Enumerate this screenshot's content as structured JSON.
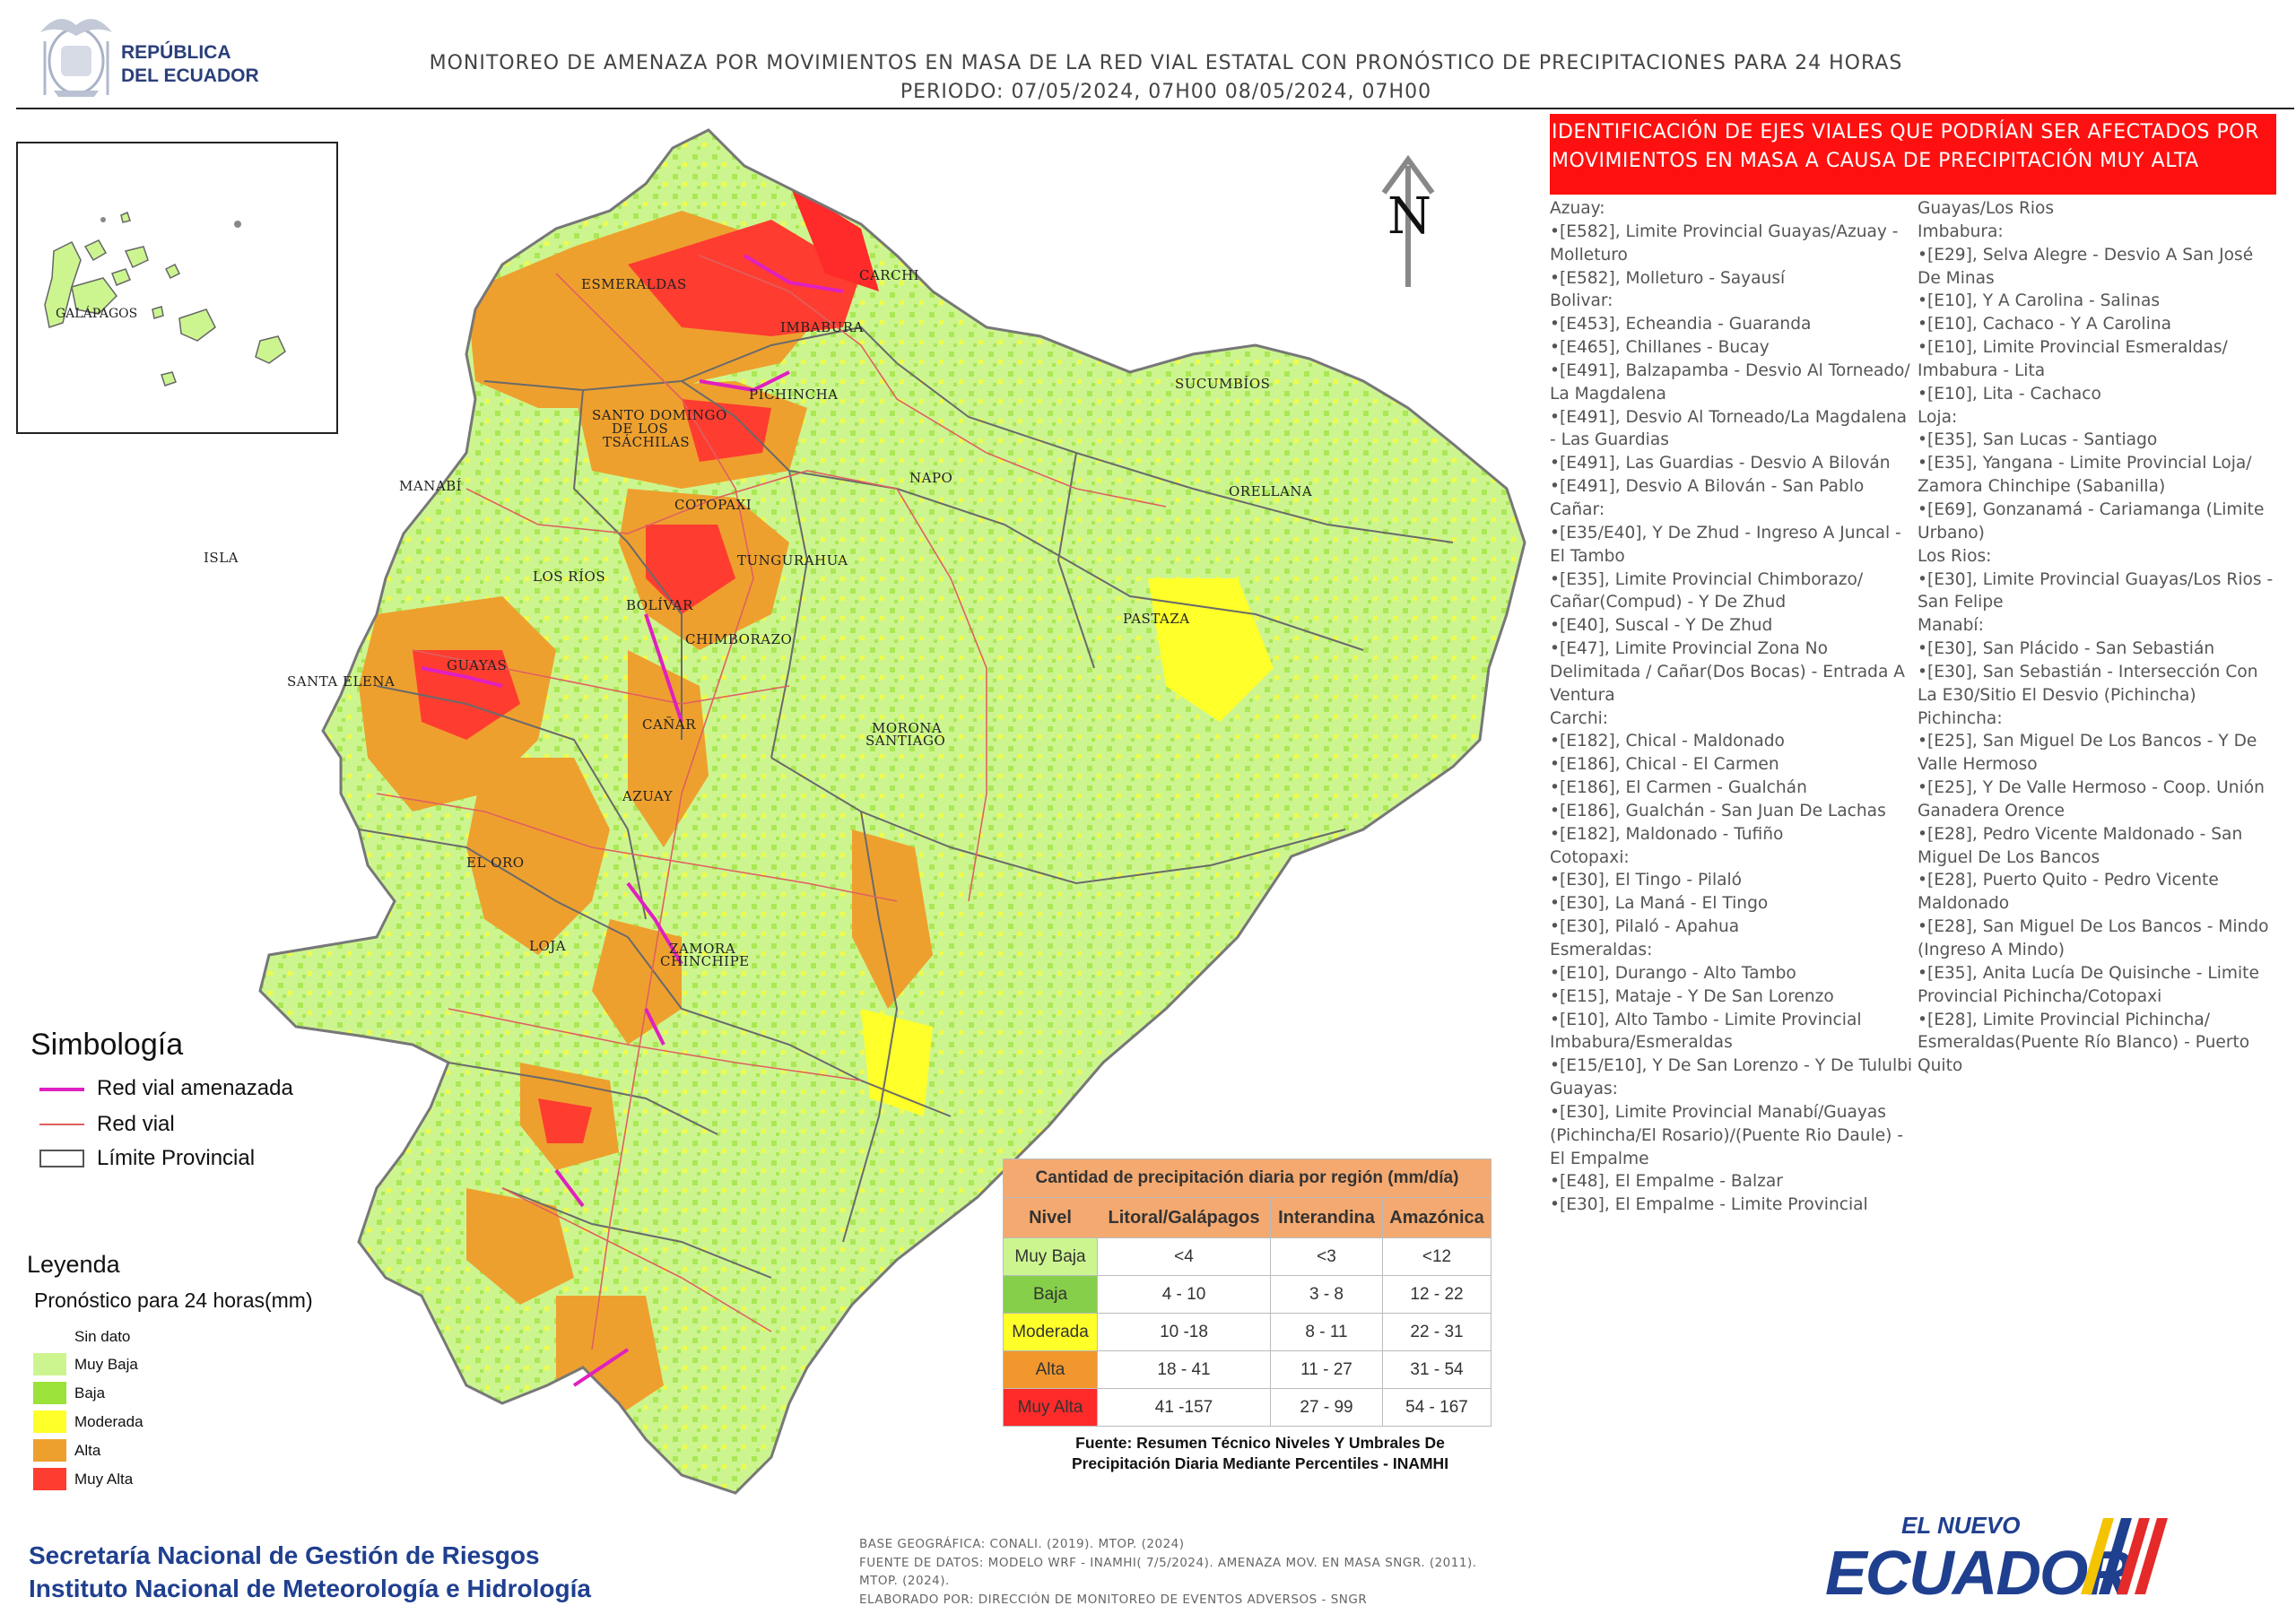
{
  "header": {
    "country_line1": "REPÚBLICA",
    "country_line2": "DEL ECUADOR",
    "title_line1": "MONITOREO DE AMENAZA POR MOVIMIENTOS EN MASA DE LA RED VIAL  ESTATAL  CON PRONÓSTICO  DE  PRECIPITACIONES PARA 24 HORAS",
    "title_line2": "PERIODO: 07/05/2024, 07H00 08/05/2024, 07H00"
  },
  "map": {
    "north_label": "N",
    "inset_label": "GALÁPAGOS",
    "province_labels": [
      "ESMERALDAS",
      "CARCHI",
      "IMBABURA",
      "SUCUMBÍOS",
      "PICHINCHA",
      "SANTO DOMINGO",
      "DE LOS",
      "TSÁCHILAS",
      "MANABÍ",
      "NAPO",
      "ORELLANA",
      "COTOPAXI",
      "ISLA",
      "TUNGURAHUA",
      "LOS RÍOS",
      "BOLÍVAR",
      "PASTAZA",
      "CHIMBORAZO",
      "GUAYAS",
      "SANTA ELENA",
      "CAÑAR",
      "MORONA",
      "SANTIAGO",
      "AZUAY",
      "EL ORO",
      "LOJA",
      "ZAMORA",
      "CHINCHIPE"
    ]
  },
  "panel": {
    "header": "IDENTIFICACIÓN DE EJES VIALES QUE PODRÍAN SER AFECTADOS POR MOVIMIENTOS EN MASA A CAUSA DE PRECIPITACIÓN MUY ALTA",
    "left_lines": [
      "Azuay:",
      "•[E582], Limite Provincial Guayas/Azuay -",
      "Molleturo",
      "•[E582], Molleturo - Sayausí",
      "Bolivar:",
      "•[E453], Echeandia - Guaranda",
      "•[E465], Chillanes - Bucay",
      "•[E491], Balzapamba - Desvio Al Torneado/",
      "La Magdalena",
      "•[E491], Desvio Al Torneado/La Magdalena",
      "- Las Guardias",
      "•[E491], Las Guardias - Desvio A Bilován",
      "•[E491], Desvio A Bilován - San Pablo",
      "Cañar:",
      "•[E35/E40], Y De Zhud - Ingreso A Juncal -",
      "El Tambo",
      "•[E35], Limite Provincial Chimborazo/",
      "Cañar(Compud) - Y De Zhud",
      "•[E40], Suscal - Y De Zhud",
      "•[E47], Limite Provincial Zona No",
      "Delimitada / Cañar(Dos Bocas) - Entrada  A",
      "Ventura",
      "Carchi:",
      "•[E182], Chical - Maldonado",
      "•[E186], Chical - El Carmen",
      "•[E186], El Carmen - Gualchán",
      "•[E186], Gualchán - San Juan De Lachas",
      "•[E182], Maldonado - Tufiño",
      "Cotopaxi:",
      "•[E30], El Tingo - Pilaló",
      "•[E30], La Maná - El Tingo",
      "•[E30], Pilaló - Apahua",
      "Esmeraldas:",
      "•[E10], Durango - Alto Tambo",
      "•[E15], Mataje - Y De San Lorenzo",
      "•[E10], Alto Tambo - Limite Provincial",
      "Imbabura/Esmeraldas",
      "•[E15/E10], Y De San Lorenzo - Y De Tululbi",
      "Guayas:",
      "•[E30], Limite Provincial Manabí/Guayas",
      "(Pichincha/El Rosario)/(Puente Rio Daule) -",
      "El Empalme",
      "•[E48], El Empalme - Balzar",
      "•[E30], El Empalme - Limite Provincial"
    ],
    "right_lines": [
      "Guayas/Los Rios",
      "Imbabura:",
      "•[E29], Selva  Alegre - Desvio  A San José",
      "De Minas",
      "•[E10], Y A Carolina - Salinas",
      "•[E10], Cachaco - Y A Carolina",
      "•[E10], Limite Provincial Esmeraldas/",
      "Imbabura - Lita",
      "•[E10], Lita - Cachaco",
      "Loja:",
      "•[E35], San Lucas - Santiago",
      "•[E35], Yangana - Limite Provincial Loja/",
      "Zamora Chinchipe (Sabanilla)",
      "•[E69], Gonzanamá - Cariamanga (Limite",
      "Urbano)",
      "Los Rios:",
      "•[E30], Limite Provincial Guayas/Los Rios -",
      "San Felipe",
      "Manabí:",
      "•[E30], San Plácido - San Sebastián",
      "•[E30], San Sebastián - Intersección Con",
      "La E30/Sitio El Desvio (Pichincha)",
      "Pichincha:",
      "•[E25], San Miguel De Los Bancos - Y De",
      "Valle Hermoso",
      "•[E25], Y De Valle Hermoso - Coop. Unión",
      "Ganadera Orence",
      "•[E28], Pedro Vicente Maldonado - San",
      "Miguel De Los Bancos",
      "•[E28], Puerto Quito - Pedro Vicente",
      "Maldonado",
      "•[E28], San Miguel De Los Bancos - Mindo",
      "(Ingreso A Mindo)",
      "•[E35], Anita Lucía De Quisinche - Limite",
      "Provincial Pichincha/Cotopaxi",
      "•[E28], Limite Provincial Pichincha/",
      "Esmeraldas(Puente Río Blanco) - Puerto",
      "Quito"
    ]
  },
  "symbology": {
    "title": "Simbología",
    "items": [
      {
        "label": "Red vial amenazada",
        "color": "#e020c0"
      },
      {
        "label": "Red vial",
        "color": "#e06060"
      },
      {
        "label": "Límite Provincial",
        "color": "#555555"
      }
    ]
  },
  "legend": {
    "title": "Leyenda",
    "subtitle": "Pronóstico para 24 horas(mm)",
    "items": [
      {
        "label": "Sin dato",
        "color": "#ffffff"
      },
      {
        "label": "Muy Baja",
        "color": "#ccf590"
      },
      {
        "label": "Baja",
        "color": "#9be23a"
      },
      {
        "label": "Moderada",
        "color": "#ffff2a"
      },
      {
        "label": "Alta",
        "color": "#eea02e"
      },
      {
        "label": "Muy Alta",
        "color": "#ff3c30"
      }
    ]
  },
  "precip_table": {
    "caption": "Cantidad de precipitación diaria por región (mm/día)",
    "headers": [
      "Nivel",
      "Litoral/Galápagos",
      "Interandina",
      "Amazónica"
    ],
    "rows": [
      {
        "level": "Muy Baja",
        "color": "#ccf590",
        "values": [
          "<4",
          "<3",
          "<12"
        ]
      },
      {
        "level": "Baja",
        "color": "#86cf4a",
        "values": [
          "4 - 10",
          "3 - 8",
          "12 - 22"
        ]
      },
      {
        "level": "Moderada",
        "color": "#ffff2a",
        "values": [
          "10 -18",
          "8 - 11",
          "22 - 31"
        ]
      },
      {
        "level": "Alta",
        "color": "#f2962e",
        "values": [
          "18 - 41",
          "11 - 27",
          "31 - 54"
        ]
      },
      {
        "level": "Muy Alta",
        "color": "#ff2a2a",
        "values": [
          "41 -157",
          "27 - 99",
          "54 - 167"
        ]
      }
    ],
    "source_line1": "Fuente: Resumen Técnico Niveles Y Umbrales De",
    "source_line2": "Precipitación Diaria Mediante Percentiles - INAMHI"
  },
  "footer": {
    "org_line1": "Secretaría Nacional de Gestión de Riesgos",
    "org_line2": "Instituto Nacional de Meteorología e Hidrología",
    "credit_line1": "BASE GEOGRÁFICA: CONALI. (2019). MTOP. (2024)",
    "credit_line2": "FUENTE DE DATOS: MODELO WRF - INAMHI( 7/5/2024).  AMENAZA MOV. EN MASA SNGR. (2011).",
    "credit_line3": "MTOP. (2024).",
    "credit_line4": "ELABORADO POR: DIRECCIÓN DE MONITOREO DE EVENTOS ADVERSOS - SNGR",
    "brand_top": "EL NUEVO",
    "brand_main": "ECUADOR"
  }
}
